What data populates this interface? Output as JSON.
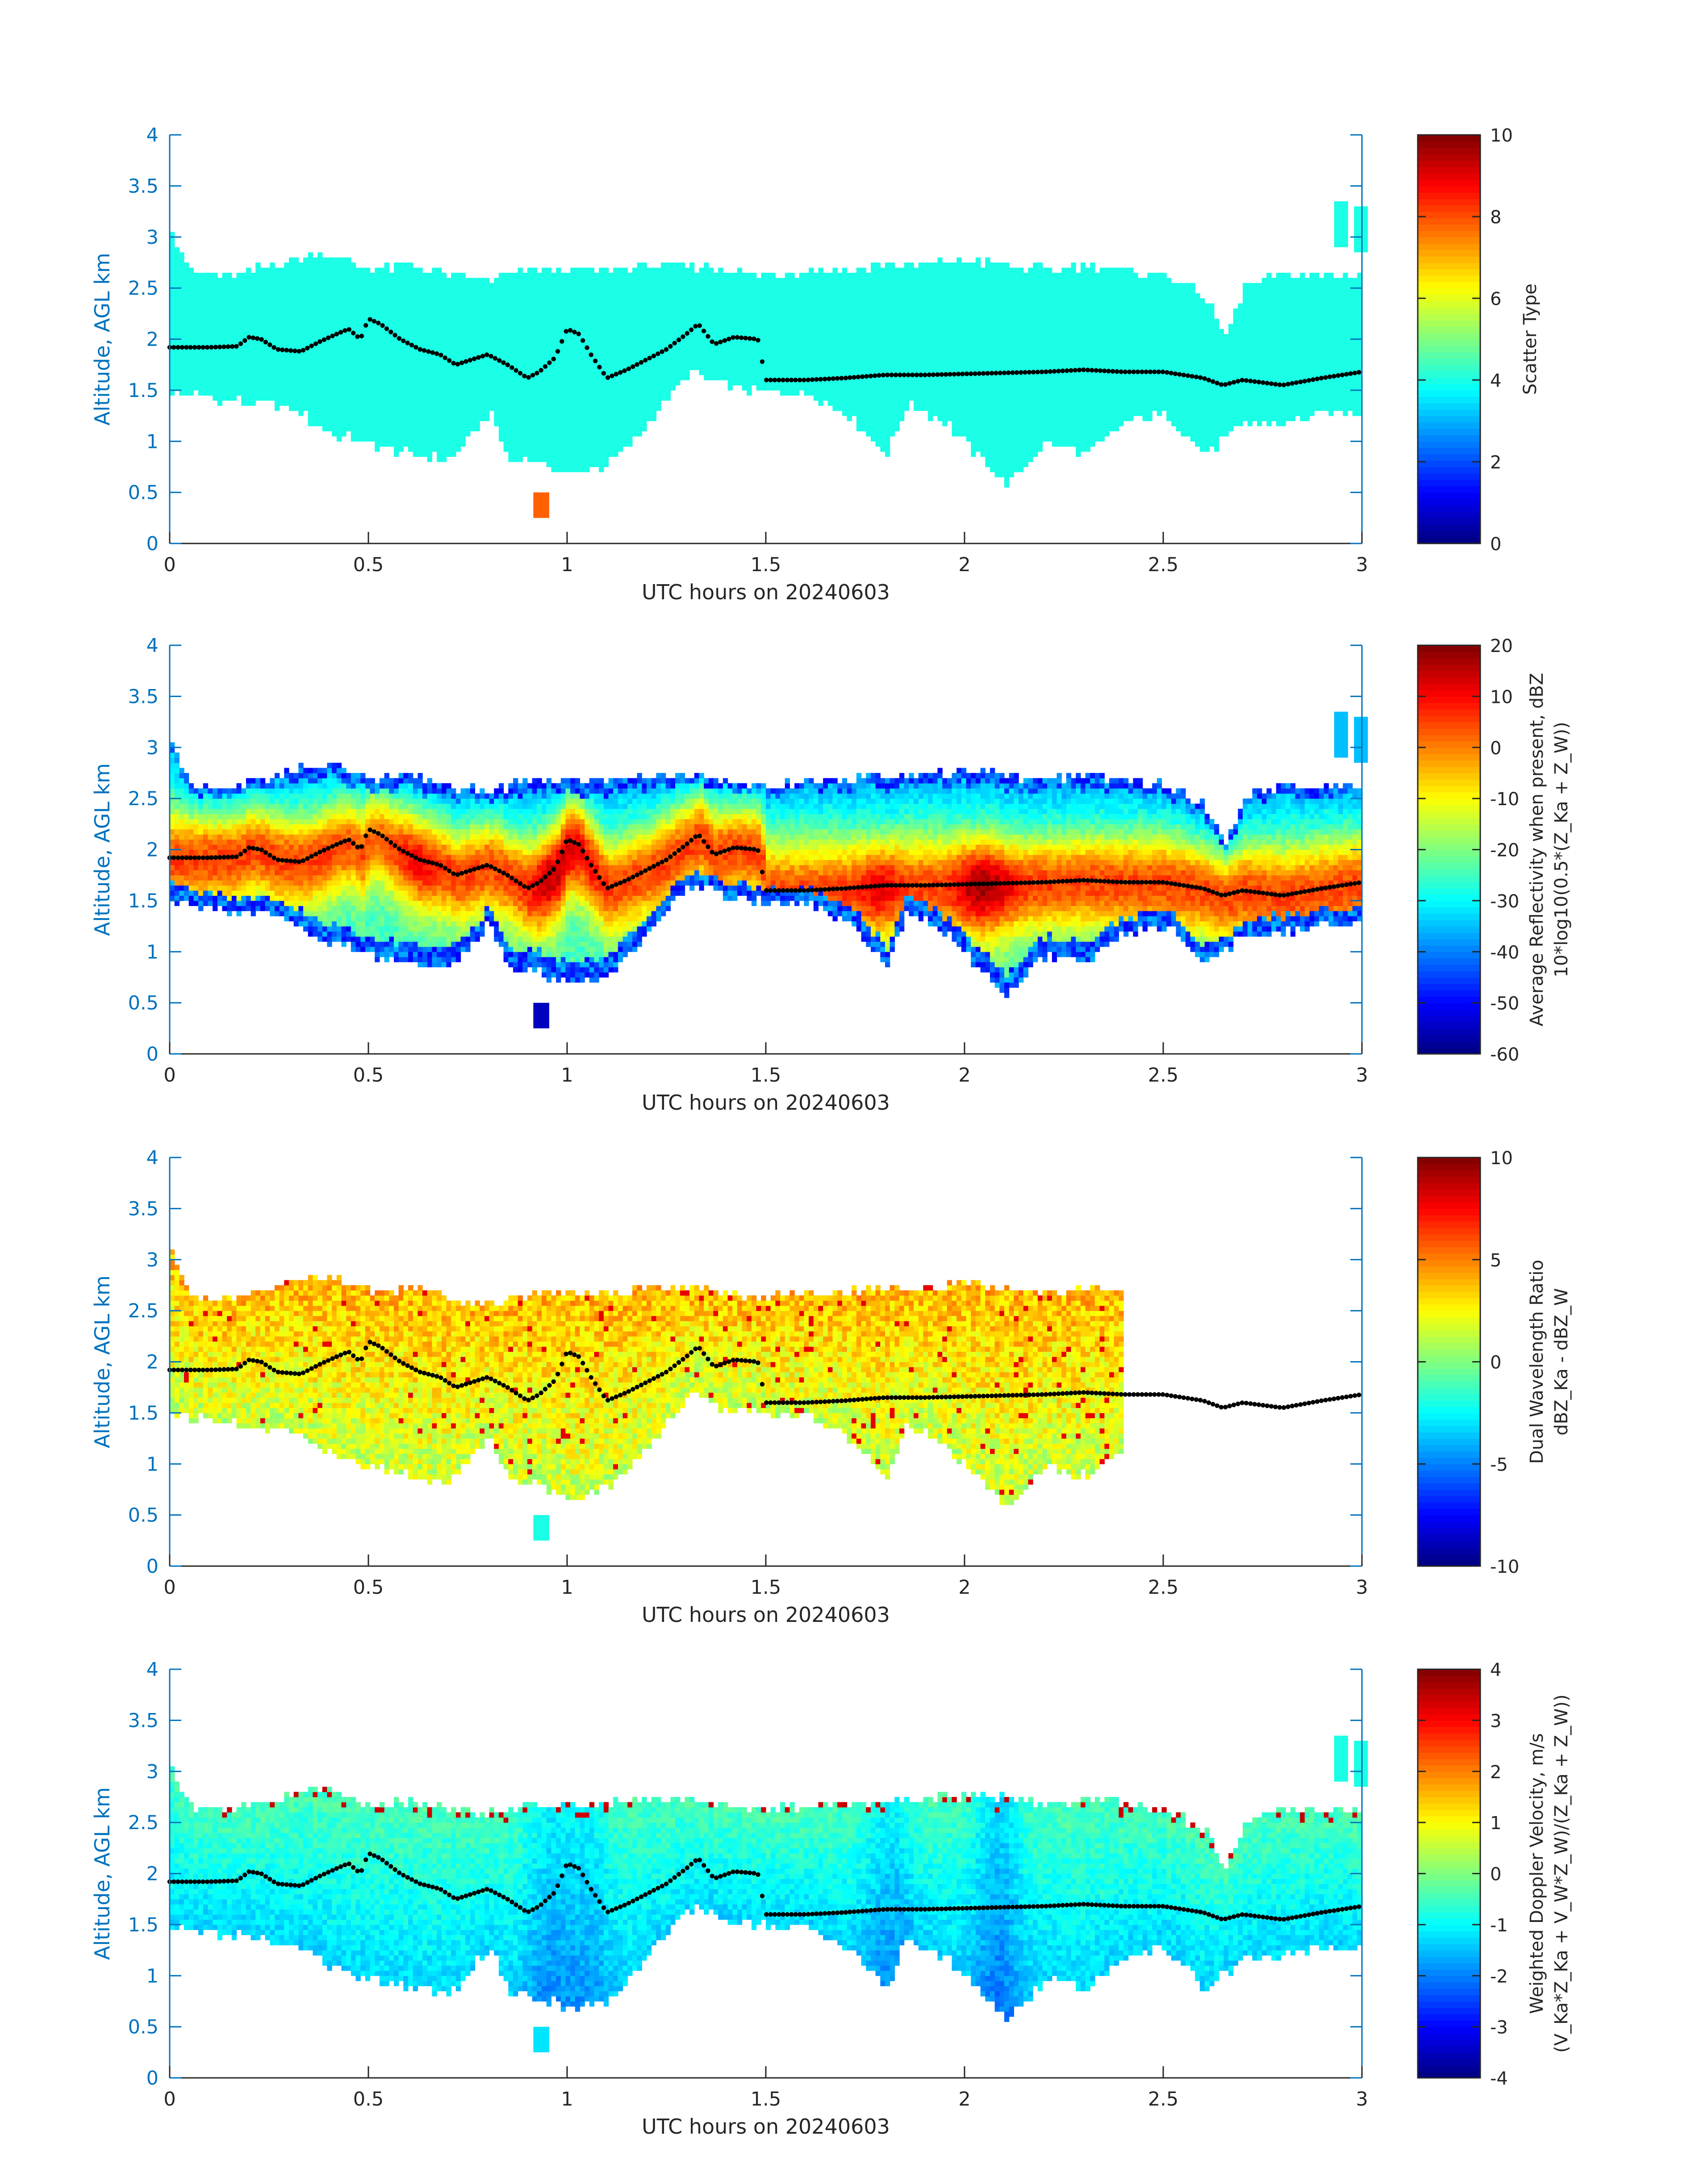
{
  "chart_data": [
    {
      "type": "heatmap",
      "title": "",
      "xlabel": "UTC hours on 20240603",
      "ylabel": "Altitude, AGL km",
      "xlim": [
        0,
        3
      ],
      "ylim": [
        0,
        4
      ],
      "xticks": [
        0,
        0.5,
        1,
        1.5,
        2,
        2.5,
        3
      ],
      "xtick_labels": [
        "0",
        "0.5",
        "1",
        "1.5",
        "2",
        "2.5",
        "3"
      ],
      "yticks": [
        0,
        0.5,
        1,
        1.5,
        2,
        2.5,
        3,
        3.5,
        4
      ],
      "ytick_labels": [
        "0",
        "0.5",
        "1",
        "1.5",
        "2",
        "2.5",
        "3",
        "3.5",
        "4"
      ],
      "colorbar": {
        "label_lines": [
          "Scatter Type"
        ],
        "clim": [
          0,
          10
        ],
        "ticks": [
          0,
          2,
          4,
          6,
          8,
          10
        ],
        "tick_labels": [
          "0",
          "2",
          "4",
          "6",
          "8",
          "10"
        ]
      },
      "field_mode": "scatter",
      "field_end": 3,
      "dominant_value": 4,
      "colormap": "jet",
      "line_end": 3
    },
    {
      "type": "heatmap",
      "title": "",
      "xlabel": "UTC hours on 20240603",
      "ylabel": "Altitude, AGL km",
      "xlim": [
        0,
        3
      ],
      "ylim": [
        0,
        4
      ],
      "xticks": [
        0,
        0.5,
        1,
        1.5,
        2,
        2.5,
        3
      ],
      "xtick_labels": [
        "0",
        "0.5",
        "1",
        "1.5",
        "2",
        "2.5",
        "3"
      ],
      "yticks": [
        0,
        0.5,
        1,
        1.5,
        2,
        2.5,
        3,
        3.5,
        4
      ],
      "ytick_labels": [
        "0",
        "0.5",
        "1",
        "1.5",
        "2",
        "2.5",
        "3",
        "3.5",
        "4"
      ],
      "colorbar": {
        "label_lines": [
          "Average Reflectivity when present, dBZ",
          "10*log10(0.5*(Z_Ka + Z_W))"
        ],
        "clim": [
          -60,
          20
        ],
        "ticks": [
          -60,
          -50,
          -40,
          -30,
          -20,
          -10,
          0,
          10,
          20
        ],
        "tick_labels": [
          "-60",
          "-50",
          "-40",
          "-30",
          "-20",
          "-10",
          "0",
          "10",
          "20"
        ]
      },
      "field_mode": "reflectivity",
      "field_end": 3,
      "colormap": "jet",
      "line_end": 3
    },
    {
      "type": "heatmap",
      "title": "",
      "xlabel": "UTC hours on 20240603",
      "ylabel": "Altitude, AGL km",
      "xlim": [
        0,
        3
      ],
      "ylim": [
        0,
        4
      ],
      "xticks": [
        0,
        0.5,
        1,
        1.5,
        2,
        2.5,
        3
      ],
      "xtick_labels": [
        "0",
        "0.5",
        "1",
        "1.5",
        "2",
        "2.5",
        "3"
      ],
      "yticks": [
        0,
        0.5,
        1,
        1.5,
        2,
        2.5,
        3,
        3.5,
        4
      ],
      "ytick_labels": [
        "0",
        "0.5",
        "1",
        "1.5",
        "2",
        "2.5",
        "3",
        "3.5",
        "4"
      ],
      "colorbar": {
        "label_lines": [
          "Dual Wavelength Ratio",
          "dBZ_Ka - dBZ_W"
        ],
        "clim": [
          -10,
          10
        ],
        "ticks": [
          -10,
          -5,
          0,
          5,
          10
        ],
        "tick_labels": [
          "-10",
          "-5",
          "0",
          "5",
          "10"
        ]
      },
      "field_mode": "dwr",
      "field_end": 2.4,
      "colormap": "jet",
      "line_end": 3
    },
    {
      "type": "heatmap",
      "title": "",
      "xlabel": "UTC hours on 20240603",
      "ylabel": "Altitude, AGL km",
      "xlim": [
        0,
        3
      ],
      "ylim": [
        0,
        4
      ],
      "xticks": [
        0,
        0.5,
        1,
        1.5,
        2,
        2.5,
        3
      ],
      "xtick_labels": [
        "0",
        "0.5",
        "1",
        "1.5",
        "2",
        "2.5",
        "3"
      ],
      "yticks": [
        0,
        0.5,
        1,
        1.5,
        2,
        2.5,
        3,
        3.5,
        4
      ],
      "ytick_labels": [
        "0",
        "0.5",
        "1",
        "1.5",
        "2",
        "2.5",
        "3",
        "3.5",
        "4"
      ],
      "colorbar": {
        "label_lines": [
          "Weighted Doppler Velocity, m/s",
          "(V_Ka*Z_Ka + V_W*Z_W)/(Z_Ka + Z_W))"
        ],
        "clim": [
          -4,
          4
        ],
        "ticks": [
          -4,
          -3,
          -2,
          -1,
          0,
          1,
          2,
          3,
          4
        ],
        "tick_labels": [
          "-4",
          "-3",
          "-2",
          "-1",
          "0",
          "1",
          "2",
          "3",
          "4"
        ]
      },
      "field_mode": "velocity",
      "field_end": 3,
      "colormap": "jet",
      "line_end": 3
    }
  ],
  "cloud_base_km": [
    [
      0,
      1.5
    ],
    [
      0.1,
      1.45
    ],
    [
      0.2,
      1.4
    ],
    [
      0.3,
      1.35
    ],
    [
      0.4,
      1.1
    ],
    [
      0.5,
      1.0
    ],
    [
      0.6,
      0.9
    ],
    [
      0.7,
      0.85
    ],
    [
      0.8,
      1.3
    ],
    [
      0.85,
      0.85
    ],
    [
      0.9,
      0.85
    ],
    [
      1.0,
      0.7
    ],
    [
      1.1,
      0.8
    ],
    [
      1.2,
      1.2
    ],
    [
      1.3,
      1.7
    ],
    [
      1.4,
      1.55
    ],
    [
      1.5,
      1.5
    ],
    [
      1.6,
      1.5
    ],
    [
      1.7,
      1.3
    ],
    [
      1.8,
      0.9
    ],
    [
      1.85,
      1.4
    ],
    [
      1.95,
      1.2
    ],
    [
      2.0,
      1.0
    ],
    [
      2.1,
      0.6
    ],
    [
      2.2,
      1.0
    ],
    [
      2.3,
      0.9
    ],
    [
      2.4,
      1.2
    ],
    [
      2.5,
      1.3
    ],
    [
      2.6,
      0.9
    ],
    [
      2.7,
      1.2
    ],
    [
      2.8,
      1.2
    ],
    [
      2.9,
      1.3
    ],
    [
      3.0,
      1.3
    ]
  ],
  "cloud_top_km": [
    [
      0,
      3.05
    ],
    [
      0.05,
      2.6
    ],
    [
      0.15,
      2.6
    ],
    [
      0.25,
      2.7
    ],
    [
      0.35,
      2.8
    ],
    [
      0.4,
      2.8
    ],
    [
      0.5,
      2.65
    ],
    [
      0.6,
      2.7
    ],
    [
      0.7,
      2.6
    ],
    [
      0.8,
      2.55
    ],
    [
      0.9,
      2.65
    ],
    [
      1.0,
      2.65
    ],
    [
      1.1,
      2.65
    ],
    [
      1.2,
      2.7
    ],
    [
      1.3,
      2.7
    ],
    [
      1.4,
      2.65
    ],
    [
      1.5,
      2.6
    ],
    [
      1.6,
      2.65
    ],
    [
      1.7,
      2.65
    ],
    [
      1.8,
      2.7
    ],
    [
      1.9,
      2.7
    ],
    [
      2.0,
      2.75
    ],
    [
      2.1,
      2.7
    ],
    [
      2.2,
      2.65
    ],
    [
      2.3,
      2.7
    ],
    [
      2.4,
      2.65
    ],
    [
      2.5,
      2.6
    ],
    [
      2.6,
      2.4
    ],
    [
      2.65,
      2.0
    ],
    [
      2.7,
      2.5
    ],
    [
      2.8,
      2.6
    ],
    [
      2.9,
      2.6
    ],
    [
      3.0,
      2.6
    ]
  ],
  "melting_layer_km": [
    [
      0,
      1.92
    ],
    [
      0.1,
      1.92
    ],
    [
      0.17,
      1.93
    ],
    [
      0.2,
      2.02
    ],
    [
      0.23,
      2.0
    ],
    [
      0.27,
      1.9
    ],
    [
      0.33,
      1.88
    ],
    [
      0.38,
      1.98
    ],
    [
      0.42,
      2.05
    ],
    [
      0.45,
      2.1
    ],
    [
      0.48,
      2.0
    ],
    [
      0.5,
      2.2
    ],
    [
      0.53,
      2.15
    ],
    [
      0.58,
      2.0
    ],
    [
      0.63,
      1.9
    ],
    [
      0.68,
      1.85
    ],
    [
      0.72,
      1.75
    ],
    [
      0.76,
      1.8
    ],
    [
      0.8,
      1.85
    ],
    [
      0.85,
      1.75
    ],
    [
      0.9,
      1.62
    ],
    [
      0.93,
      1.68
    ],
    [
      0.97,
      1.82
    ],
    [
      1.0,
      2.1
    ],
    [
      1.03,
      2.05
    ],
    [
      1.06,
      1.85
    ],
    [
      1.1,
      1.62
    ],
    [
      1.15,
      1.7
    ],
    [
      1.2,
      1.8
    ],
    [
      1.25,
      1.9
    ],
    [
      1.3,
      2.05
    ],
    [
      1.33,
      2.15
    ],
    [
      1.37,
      1.95
    ],
    [
      1.42,
      2.02
    ],
    [
      1.48,
      2.0
    ],
    [
      1.5,
      1.6
    ],
    [
      1.6,
      1.6
    ],
    [
      1.7,
      1.62
    ],
    [
      1.8,
      1.65
    ],
    [
      1.9,
      1.65
    ],
    [
      2.0,
      1.66
    ],
    [
      2.1,
      1.67
    ],
    [
      2.2,
      1.68
    ],
    [
      2.3,
      1.7
    ],
    [
      2.4,
      1.68
    ],
    [
      2.5,
      1.68
    ],
    [
      2.6,
      1.62
    ],
    [
      2.65,
      1.55
    ],
    [
      2.7,
      1.6
    ],
    [
      2.8,
      1.55
    ],
    [
      2.9,
      1.62
    ],
    [
      3.0,
      1.68
    ]
  ]
}
